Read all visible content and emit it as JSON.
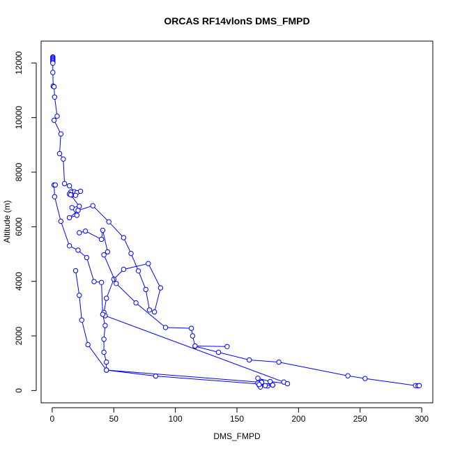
{
  "chart_data": {
    "type": "line",
    "title": "ORCAS RF14vlonS DMS_FMPD",
    "xlabel": "DMS_FMPD",
    "ylabel": "Altitude (m)",
    "xlim": [
      -9,
      309
    ],
    "ylim": [
      -450,
      12800
    ],
    "x_ticks": [
      0,
      50,
      100,
      150,
      200,
      250,
      300
    ],
    "y_ticks": [
      0,
      2000,
      4000,
      6000,
      8000,
      10000,
      12000
    ],
    "grid": false,
    "legend": "none",
    "series_color": "#0000ff",
    "series": [
      {
        "markers": "open-circle",
        "points": [
          [
            0.5,
            12220
          ],
          [
            0.5,
            12190
          ],
          [
            0.5,
            12150
          ],
          [
            0.5,
            12110
          ],
          [
            0.5,
            12070
          ],
          [
            0.5,
            12030
          ],
          [
            0.5,
            11990
          ],
          [
            0.5,
            11650
          ],
          [
            0.8,
            11150
          ],
          [
            1.5,
            11130
          ],
          [
            2,
            10750
          ],
          [
            4,
            10050
          ],
          [
            1.5,
            9900
          ],
          [
            7,
            9400
          ],
          [
            6,
            8680
          ],
          [
            9,
            8480
          ],
          [
            10,
            7580
          ],
          [
            14,
            7500
          ],
          [
            18,
            7280
          ],
          [
            20,
            7250
          ],
          [
            23,
            7300
          ],
          [
            15,
            7270
          ],
          [
            14,
            7200
          ],
          [
            16,
            7160
          ],
          [
            19,
            7150
          ],
          [
            15,
            7170
          ],
          [
            22,
            6750
          ],
          [
            16,
            6700
          ],
          [
            20,
            6420
          ],
          [
            14,
            6330
          ],
          [
            21,
            6600
          ],
          [
            33,
            6770
          ],
          [
            46,
            6180
          ],
          [
            58,
            5600
          ],
          [
            64,
            5020
          ],
          [
            70,
            4380
          ],
          [
            76,
            3700
          ],
          [
            79,
            2950
          ],
          [
            83,
            2880
          ],
          [
            88,
            3760
          ],
          [
            78,
            4650
          ],
          [
            58,
            4440
          ],
          [
            50,
            4080
          ],
          [
            44,
            3380
          ],
          [
            42,
            2860
          ],
          [
            43,
            2740
          ],
          [
            188,
            310
          ],
          [
            191,
            250
          ],
          [
            177,
            330
          ],
          [
            167,
            450
          ],
          [
            170,
            310
          ],
          [
            168,
            200
          ],
          [
            169,
            130
          ],
          [
            175,
            170
          ],
          [
            179,
            200
          ],
          [
            84,
            530
          ],
          [
            44,
            750
          ],
          [
            44,
            1040
          ],
          [
            42,
            1400
          ],
          [
            42,
            1880
          ],
          [
            43,
            2380
          ],
          [
            41,
            2790
          ],
          [
            40,
            3960
          ],
          [
            34,
            3990
          ],
          [
            28,
            4870
          ],
          [
            21,
            5140
          ],
          [
            14,
            5300
          ],
          [
            7,
            6200
          ],
          [
            2,
            7100
          ],
          [
            1.5,
            7530
          ],
          [
            2.5,
            7530
          ]
        ]
      },
      {
        "markers": "open-circle",
        "points": [
          [
            22,
            5780
          ],
          [
            27,
            5840
          ],
          [
            40,
            5540
          ],
          [
            41,
            5870
          ],
          [
            45,
            5080
          ],
          [
            42,
            4970
          ],
          [
            52,
            3920
          ],
          [
            68,
            3210
          ],
          [
            92,
            2310
          ],
          [
            113,
            2280
          ],
          [
            114,
            2000
          ],
          [
            116,
            1620
          ],
          [
            135,
            1400
          ],
          [
            160,
            1120
          ],
          [
            184,
            1040
          ],
          [
            240,
            540
          ],
          [
            254,
            440
          ],
          [
            295,
            180
          ],
          [
            297,
            175
          ],
          [
            298,
            180
          ]
        ]
      },
      {
        "markers": "open-circle",
        "points": [
          [
            19,
            4390
          ],
          [
            22,
            3490
          ],
          [
            24,
            2580
          ],
          [
            29,
            1680
          ],
          [
            44,
            750
          ],
          [
            170,
            300
          ],
          [
            167,
            270
          ],
          [
            168,
            220
          ],
          [
            173,
            180
          ],
          [
            179,
            200
          ]
        ]
      },
      {
        "markers": "open-circle",
        "points": [
          [
            142,
            1610
          ],
          [
            116,
            1630
          ]
        ]
      }
    ]
  }
}
